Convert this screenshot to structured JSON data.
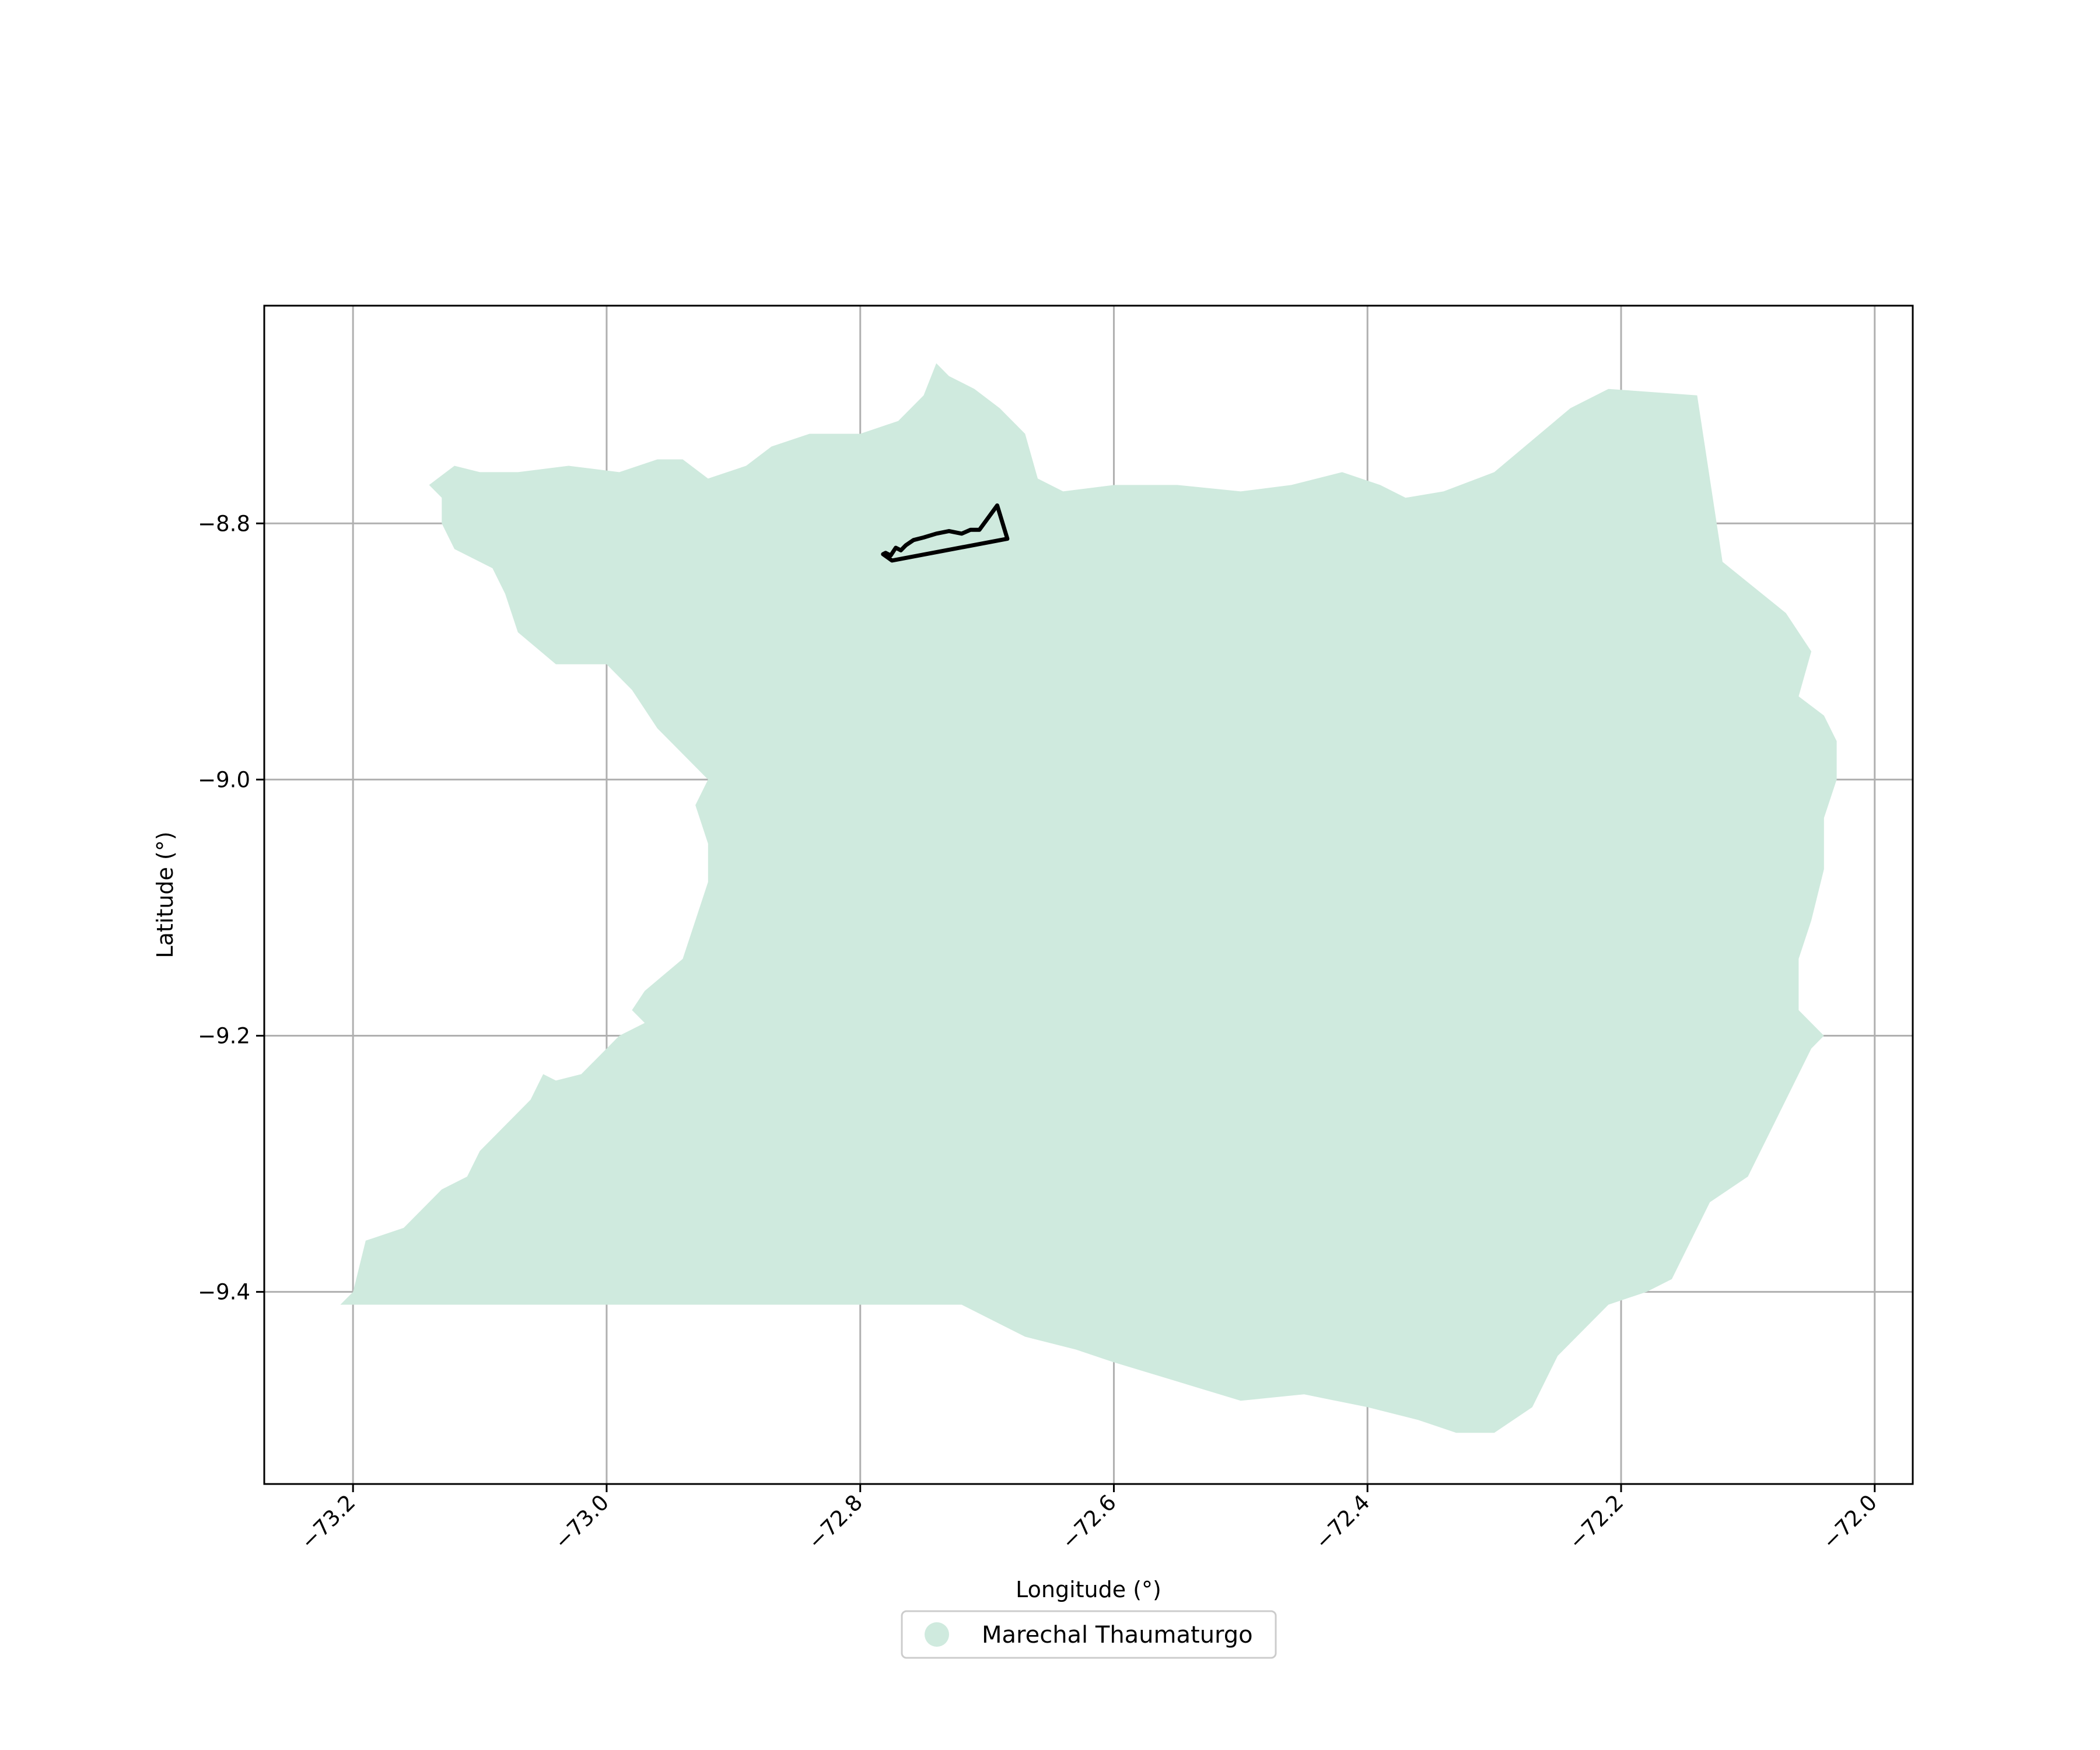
{
  "map": {
    "xlabel": "Longitude (°)",
    "ylabel": "Latitude (°)",
    "x_ticks": [
      "−73.2",
      "−73.0",
      "−72.8",
      "−72.6",
      "−72.4",
      "−72.2",
      "−72.0"
    ],
    "y_ticks": [
      "−8.8",
      "−9.0",
      "−9.2",
      "−9.4"
    ],
    "x_tick_values": [
      -73.2,
      -73.0,
      -72.8,
      -72.6,
      -72.4,
      -72.2,
      -72.0
    ],
    "y_tick_values": [
      -8.8,
      -9.0,
      -9.2,
      -9.4
    ],
    "xlim": [
      -73.27,
      -71.97
    ],
    "ylim": [
      -9.55,
      -8.63
    ],
    "grid": true,
    "x_tick_rotation_deg": 45,
    "legend": {
      "placement": "bottom-center, below axes",
      "entries": [
        {
          "label": "Marechal Thaumaturgo",
          "color": "#cfeade",
          "marker": "circle"
        }
      ]
    },
    "colors": {
      "region_fill": "#cfeade",
      "outline_stroke": "#000000",
      "grid": "#b0b0b0"
    },
    "region": {
      "name": "Marechal Thaumaturgo",
      "polygon_lonlat": [
        [
          -73.14,
          -8.77
        ],
        [
          -73.12,
          -8.755
        ],
        [
          -73.1,
          -8.76
        ],
        [
          -73.07,
          -8.76
        ],
        [
          -73.03,
          -8.755
        ],
        [
          -72.99,
          -8.76
        ],
        [
          -72.96,
          -8.75
        ],
        [
          -72.94,
          -8.75
        ],
        [
          -72.92,
          -8.765
        ],
        [
          -72.89,
          -8.755
        ],
        [
          -72.87,
          -8.74
        ],
        [
          -72.84,
          -8.73
        ],
        [
          -72.8,
          -8.73
        ],
        [
          -72.77,
          -8.72
        ],
        [
          -72.75,
          -8.7
        ],
        [
          -72.74,
          -8.675
        ],
        [
          -72.73,
          -8.685
        ],
        [
          -72.71,
          -8.695
        ],
        [
          -72.69,
          -8.71
        ],
        [
          -72.67,
          -8.73
        ],
        [
          -72.66,
          -8.765
        ],
        [
          -72.64,
          -8.775
        ],
        [
          -72.6,
          -8.77
        ],
        [
          -72.55,
          -8.77
        ],
        [
          -72.5,
          -8.775
        ],
        [
          -72.46,
          -8.77
        ],
        [
          -72.42,
          -8.76
        ],
        [
          -72.39,
          -8.77
        ],
        [
          -72.37,
          -8.78
        ],
        [
          -72.34,
          -8.775
        ],
        [
          -72.3,
          -8.76
        ],
        [
          -72.24,
          -8.71
        ],
        [
          -72.21,
          -8.695
        ],
        [
          -72.14,
          -8.7
        ],
        [
          -72.12,
          -8.83
        ],
        [
          -72.07,
          -8.87
        ],
        [
          -72.05,
          -8.9
        ],
        [
          -72.06,
          -8.935
        ],
        [
          -72.04,
          -8.95
        ],
        [
          -72.03,
          -8.97
        ],
        [
          -72.03,
          -9.0
        ],
        [
          -72.04,
          -9.03
        ],
        [
          -72.04,
          -9.07
        ],
        [
          -72.05,
          -9.11
        ],
        [
          -72.06,
          -9.14
        ],
        [
          -72.06,
          -9.18
        ],
        [
          -72.04,
          -9.2
        ],
        [
          -72.05,
          -9.21
        ],
        [
          -72.08,
          -9.27
        ],
        [
          -72.1,
          -9.31
        ],
        [
          -72.13,
          -9.33
        ],
        [
          -72.16,
          -9.39
        ],
        [
          -72.18,
          -9.4
        ],
        [
          -72.21,
          -9.41
        ],
        [
          -72.25,
          -9.45
        ],
        [
          -72.26,
          -9.47
        ],
        [
          -72.27,
          -9.49
        ],
        [
          -72.3,
          -9.51
        ],
        [
          -72.33,
          -9.51
        ],
        [
          -72.36,
          -9.5
        ],
        [
          -72.4,
          -9.49
        ],
        [
          -72.45,
          -9.48
        ],
        [
          -72.5,
          -9.485
        ],
        [
          -72.55,
          -9.47
        ],
        [
          -72.6,
          -9.455
        ],
        [
          -72.63,
          -9.445
        ],
        [
          -72.67,
          -9.435
        ],
        [
          -72.7,
          -9.42
        ],
        [
          -72.72,
          -9.41
        ],
        [
          -72.85,
          -9.41
        ],
        [
          -73.0,
          -9.41
        ],
        [
          -73.15,
          -9.41
        ],
        [
          -73.21,
          -9.41
        ],
        [
          -73.2,
          -9.4
        ],
        [
          -73.19,
          -9.36
        ],
        [
          -73.16,
          -9.35
        ],
        [
          -73.13,
          -9.32
        ],
        [
          -73.11,
          -9.31
        ],
        [
          -73.1,
          -9.29
        ],
        [
          -73.08,
          -9.27
        ],
        [
          -73.06,
          -9.25
        ],
        [
          -73.05,
          -9.23
        ],
        [
          -73.04,
          -9.235
        ],
        [
          -73.02,
          -9.23
        ],
        [
          -72.99,
          -9.2
        ],
        [
          -72.97,
          -9.19
        ],
        [
          -72.98,
          -9.18
        ],
        [
          -72.97,
          -9.165
        ],
        [
          -72.94,
          -9.14
        ],
        [
          -72.93,
          -9.11
        ],
        [
          -72.92,
          -9.08
        ],
        [
          -72.92,
          -9.05
        ],
        [
          -72.93,
          -9.02
        ],
        [
          -72.92,
          -9.0
        ],
        [
          -72.94,
          -8.98
        ],
        [
          -72.96,
          -8.96
        ],
        [
          -72.98,
          -8.93
        ],
        [
          -73.0,
          -8.91
        ],
        [
          -73.04,
          -8.91
        ],
        [
          -73.07,
          -8.885
        ],
        [
          -73.08,
          -8.855
        ],
        [
          -73.09,
          -8.835
        ],
        [
          -73.12,
          -8.82
        ],
        [
          -73.13,
          -8.8
        ],
        [
          -73.13,
          -8.78
        ]
      ]
    },
    "outline": {
      "polygon_lonlat": [
        [
          -72.782,
          -8.824
        ],
        [
          -72.775,
          -8.829
        ],
        [
          -72.684,
          -8.812
        ],
        [
          -72.692,
          -8.786
        ],
        [
          -72.706,
          -8.805
        ],
        [
          -72.713,
          -8.805
        ],
        [
          -72.72,
          -8.808
        ],
        [
          -72.73,
          -8.806
        ],
        [
          -72.74,
          -8.808
        ],
        [
          -72.75,
          -8.811
        ],
        [
          -72.758,
          -8.813
        ],
        [
          -72.764,
          -8.817
        ],
        [
          -72.768,
          -8.821
        ],
        [
          -72.772,
          -8.819
        ],
        [
          -72.776,
          -8.825
        ],
        [
          -72.78,
          -8.823
        ]
      ]
    }
  }
}
